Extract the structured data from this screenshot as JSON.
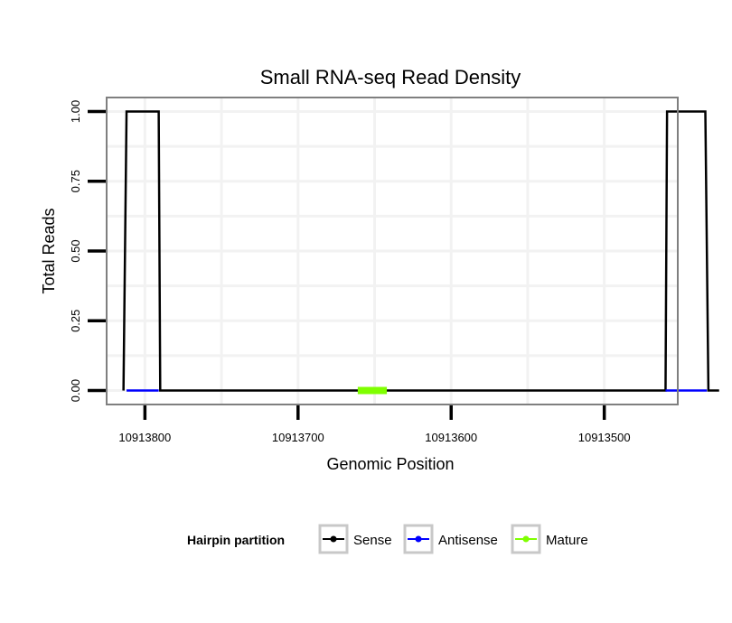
{
  "chart_data": {
    "type": "line",
    "title": "Small RNA-seq Read Density",
    "xlabel": "Genomic Position",
    "ylabel": "Total Reads",
    "x_reversed": true,
    "xlim": [
      10913825,
      10913452
    ],
    "ylim": [
      -0.05,
      1.05
    ],
    "x_ticks": [
      10913800,
      10913700,
      10913600,
      10913500
    ],
    "x_tick_labels": [
      "10913800",
      "10913700",
      "10913600",
      "10913500"
    ],
    "y_ticks": [
      0,
      0.25,
      0.5,
      0.75,
      1
    ],
    "y_tick_labels": [
      "0.00",
      "0.25",
      "0.50",
      "0.75",
      "1.00"
    ],
    "grid": true,
    "legend": {
      "title": "Hairpin partition",
      "position": "bottom",
      "entries": [
        {
          "name": "Sense",
          "color": "#000000"
        },
        {
          "name": "Antisense",
          "color": "#0000ff"
        },
        {
          "name": "Mature",
          "color": "#7fff00"
        }
      ]
    },
    "series": [
      {
        "name": "Sense",
        "color": "#000000",
        "x": [
          10913814,
          10913812,
          10913791,
          10913790,
          10913460,
          10913459,
          10913434,
          10913432,
          10913425
        ],
        "y": [
          0,
          1,
          1,
          0,
          0,
          1,
          1,
          0,
          0
        ]
      },
      {
        "name": "Antisense",
        "color": "#0000ff",
        "x": [
          10913812,
          10913791
        ],
        "y": [
          0,
          0
        ]
      },
      {
        "name": "Antisense",
        "color": "#0000ff",
        "x": [
          10913460,
          10913433
        ],
        "y": [
          0,
          0
        ]
      },
      {
        "name": "Mature",
        "color": "#7fff00",
        "x": [
          10913661,
          10913642
        ],
        "y": [
          0,
          0
        ]
      }
    ]
  }
}
